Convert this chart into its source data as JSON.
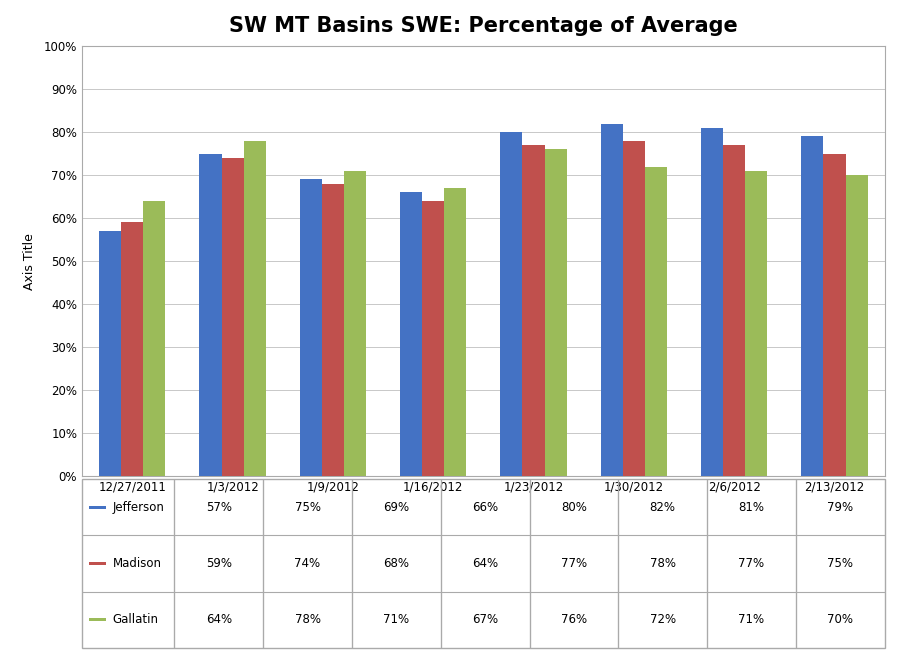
{
  "title": "SW MT Basins SWE: Percentage of Average",
  "ylabel": "Axis Title",
  "categories": [
    "12/27/2011",
    "1/3/2012",
    "1/9/2012",
    "1/16/2012",
    "1/23/2012",
    "1/30/2012",
    "2/6/2012",
    "2/13/2012"
  ],
  "series": [
    {
      "name": "Jefferson",
      "color": "#4472C4",
      "values": [
        57,
        75,
        69,
        66,
        80,
        82,
        81,
        79
      ]
    },
    {
      "name": "Madison",
      "color": "#C0504D",
      "values": [
        59,
        74,
        68,
        64,
        77,
        78,
        77,
        75
      ]
    },
    {
      "name": "Gallatin",
      "color": "#9BBB59",
      "values": [
        64,
        78,
        71,
        67,
        76,
        72,
        71,
        70
      ]
    }
  ],
  "ylim": [
    0,
    100
  ],
  "yticks": [
    0,
    10,
    20,
    30,
    40,
    50,
    60,
    70,
    80,
    90,
    100
  ],
  "ytick_labels": [
    "0%",
    "10%",
    "20%",
    "30%",
    "40%",
    "50%",
    "60%",
    "70%",
    "80%",
    "90%",
    "100%"
  ],
  "background_color": "#FFFFFF",
  "plot_background": "#FFFFFF",
  "grid_color": "#C8C8C8",
  "title_fontsize": 15,
  "axis_label_fontsize": 9,
  "tick_fontsize": 8.5,
  "legend_fontsize": 8.5,
  "bar_width": 0.22,
  "legend_table_data": [
    [
      "Jefferson",
      "57%",
      "75%",
      "69%",
      "66%",
      "80%",
      "82%",
      "81%",
      "79%"
    ],
    [
      "Madison",
      "59%",
      "74%",
      "68%",
      "64%",
      "77%",
      "78%",
      "77%",
      "75%"
    ],
    [
      "Gallatin",
      "64%",
      "78%",
      "71%",
      "67%",
      "76%",
      "72%",
      "71%",
      "70%"
    ]
  ]
}
